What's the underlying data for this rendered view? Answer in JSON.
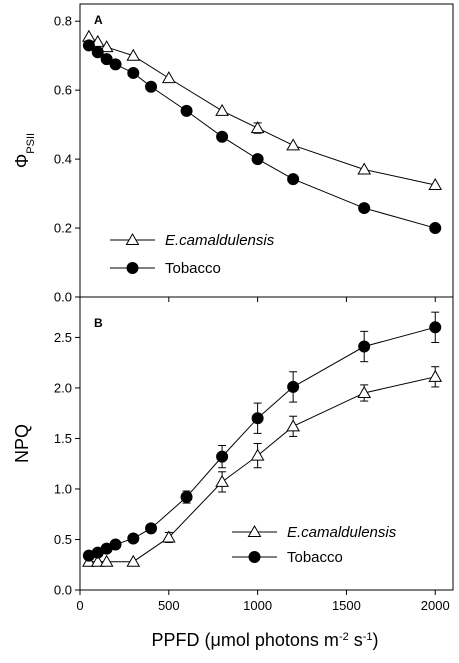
{
  "figure": {
    "xlabel_prefix": "PPFD (",
    "xlabel_mu": "μ",
    "xlabel_mid": "mol photons m",
    "xlabel_sup1": "-2",
    "xlabel_mid2": " s",
    "xlabel_sup2": "-1",
    "xlabel_suffix": ")"
  },
  "chart_data": [
    {
      "type": "line",
      "panel_label": "A",
      "ylabel_main": "Φ",
      "ylabel_sub": "PSII",
      "xlabel": "",
      "xlim": [
        0,
        2100
      ],
      "ylim": [
        0.0,
        0.85
      ],
      "xticks": [
        0,
        500,
        1000,
        1500,
        2000
      ],
      "yticks": [
        0.0,
        0.2,
        0.4,
        0.6,
        0.8
      ],
      "ytick_labels": [
        "0.0",
        "0.2",
        "0.4",
        "0.6",
        "0.8"
      ],
      "legend_position": "lower-left",
      "series": [
        {
          "name": "E.camaldulensis",
          "marker": "open-triangle",
          "x": [
            50,
            100,
            150,
            300,
            500,
            800,
            1000,
            1200,
            1600,
            2000
          ],
          "y": [
            0.755,
            0.74,
            0.725,
            0.7,
            0.635,
            0.54,
            0.49,
            0.44,
            0.37,
            0.325
          ],
          "err": [
            0.01,
            0.01,
            0.01,
            0.01,
            0.01,
            0.01,
            0.015,
            0.01,
            0.01,
            0.01
          ]
        },
        {
          "name": "Tobacco",
          "marker": "filled-circle",
          "x": [
            50,
            100,
            150,
            200,
            300,
            400,
            600,
            800,
            1000,
            1200,
            1600,
            2000
          ],
          "y": [
            0.73,
            0.71,
            0.69,
            0.675,
            0.65,
            0.61,
            0.54,
            0.465,
            0.4,
            0.342,
            0.258,
            0.2
          ],
          "err": [
            0.01,
            0.01,
            0.01,
            0.01,
            0.01,
            0.01,
            0.01,
            0.01,
            0.01,
            0.01,
            0.01,
            0.01
          ]
        }
      ]
    },
    {
      "type": "line",
      "panel_label": "B",
      "ylabel_main": "NPQ",
      "ylabel_sub": "",
      "xlabel": "",
      "xlim": [
        0,
        2100
      ],
      "ylim": [
        0.0,
        2.9
      ],
      "xticks": [
        0,
        500,
        1000,
        1500,
        2000
      ],
      "xtick_labels": [
        "0",
        "500",
        "1000",
        "1500",
        "2000"
      ],
      "yticks": [
        0.0,
        0.5,
        1.0,
        1.5,
        2.0,
        2.5
      ],
      "ytick_labels": [
        "0.0",
        "0.5",
        "1.0",
        "1.5",
        "2.0",
        "2.5"
      ],
      "legend_position": "lower-right",
      "series": [
        {
          "name": "E.camaldulensis",
          "marker": "open-triangle",
          "x": [
            50,
            100,
            150,
            300,
            500,
            800,
            1000,
            1200,
            1600,
            2000
          ],
          "y": [
            0.28,
            0.28,
            0.28,
            0.28,
            0.52,
            1.07,
            1.33,
            1.62,
            1.95,
            2.11
          ],
          "err": [
            0.02,
            0.02,
            0.02,
            0.02,
            0.05,
            0.1,
            0.12,
            0.1,
            0.08,
            0.1
          ]
        },
        {
          "name": "Tobacco",
          "marker": "filled-circle",
          "x": [
            50,
            100,
            150,
            200,
            300,
            400,
            600,
            800,
            1000,
            1200,
            1600,
            2000
          ],
          "y": [
            0.34,
            0.37,
            0.41,
            0.45,
            0.51,
            0.61,
            0.92,
            1.32,
            1.7,
            2.01,
            2.41,
            2.6
          ],
          "err": [
            0.02,
            0.02,
            0.02,
            0.02,
            0.03,
            0.04,
            0.06,
            0.11,
            0.15,
            0.15,
            0.15,
            0.15
          ]
        }
      ]
    }
  ]
}
